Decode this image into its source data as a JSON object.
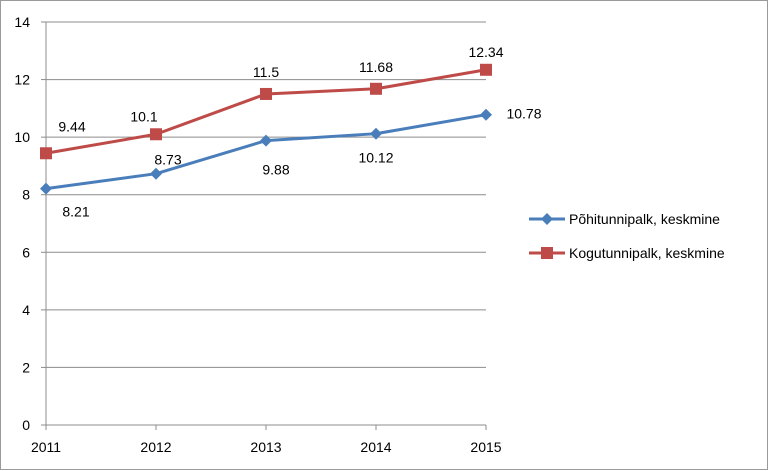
{
  "chart_data": {
    "type": "line",
    "x": [
      2011,
      2012,
      2013,
      2014,
      2015
    ],
    "ylim": [
      0,
      14
    ],
    "yticks": [
      0,
      2,
      4,
      6,
      8,
      10,
      12,
      14
    ],
    "grid": true,
    "legend_position": "right",
    "title": "",
    "xlabel": "",
    "ylabel": "",
    "series": [
      {
        "name": "Põhitunnipalk, keskmine",
        "values": [
          8.21,
          8.73,
          9.88,
          10.12,
          10.78
        ],
        "labels": [
          "8.21",
          "8.73",
          "9.88",
          "10.12",
          "10.78"
        ],
        "color": "#4a7ebb",
        "marker": "diamond"
      },
      {
        "name": "Kogutunnipalk, keskmine",
        "values": [
          9.44,
          10.1,
          11.5,
          11.68,
          12.34
        ],
        "labels": [
          "9.44",
          "10.1",
          "11.5",
          "11.68",
          "12.34"
        ],
        "color": "#be4b48",
        "marker": "square"
      }
    ]
  }
}
